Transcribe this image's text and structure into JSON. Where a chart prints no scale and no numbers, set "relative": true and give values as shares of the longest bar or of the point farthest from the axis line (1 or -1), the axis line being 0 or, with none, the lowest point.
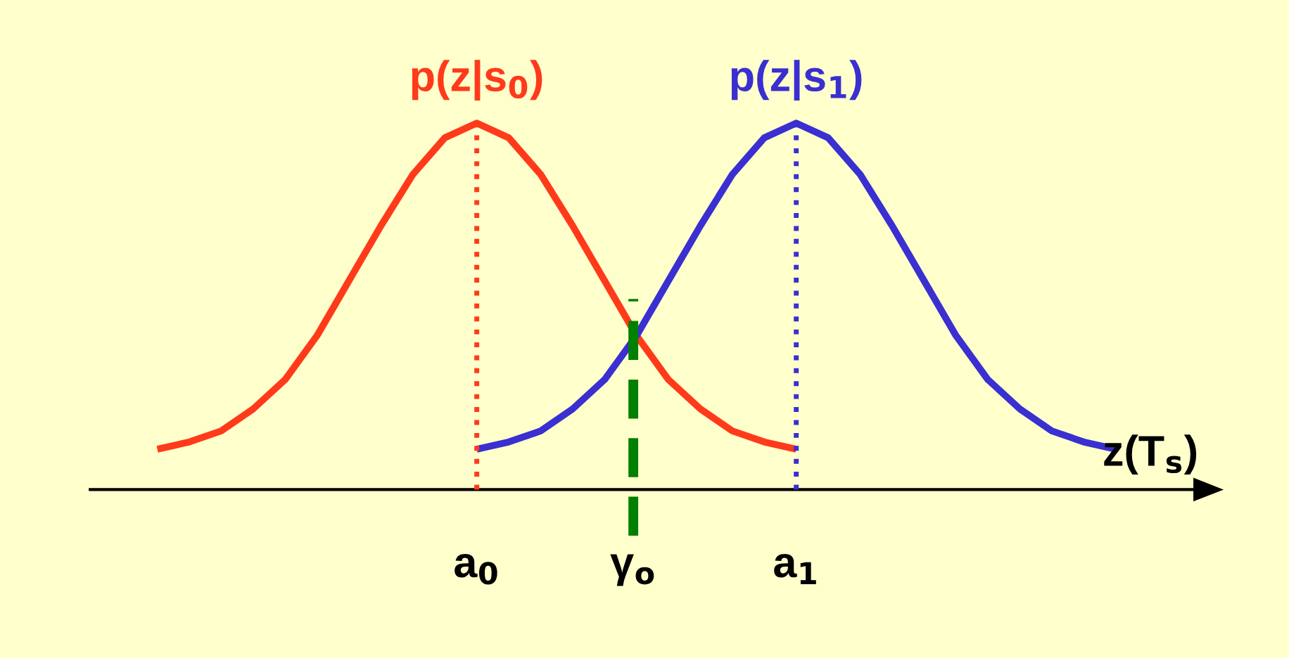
{
  "chart_data": {
    "type": "line",
    "relative": true,
    "xlabel": "z(T$_{s}$)",
    "xlim": [
      -1.21,
      2.26
    ],
    "xticks": [
      {
        "value": 0,
        "label": "a$_{0}$"
      },
      {
        "value": 1,
        "label": "a$_{1}$"
      }
    ],
    "tick_labels": "x",
    "grid": false,
    "legend": false,
    "marker": "none",
    "line_style": "solid",
    "series": [
      {
        "name": "p(z|s$_{0}$)",
        "color": "#ff3a1a",
        "x": [
          -1.0,
          -0.9,
          -0.8,
          -0.7,
          -0.6,
          -0.5,
          -0.4,
          -0.3,
          -0.2,
          -0.1,
          0.0,
          0.1,
          0.2,
          0.3,
          0.4,
          0.5,
          0.6,
          0.7,
          0.8,
          0.9,
          1.0
        ],
        "values": [
          0.11,
          0.13,
          0.16,
          0.22,
          0.3,
          0.42,
          0.57,
          0.72,
          0.86,
          0.96,
          1.0,
          0.96,
          0.86,
          0.72,
          0.57,
          0.42,
          0.3,
          0.22,
          0.16,
          0.13,
          0.11
        ]
      },
      {
        "name": "p(z|s$_{1}$)",
        "color": "#3a2fd0",
        "x": [
          0.0,
          0.1,
          0.2,
          0.3,
          0.4,
          0.5,
          0.6,
          0.7,
          0.8,
          0.9,
          1.0,
          1.1,
          1.2,
          1.3,
          1.4,
          1.5,
          1.6,
          1.7,
          1.8,
          1.9,
          2.0
        ],
        "values": [
          0.11,
          0.13,
          0.16,
          0.22,
          0.3,
          0.42,
          0.57,
          0.72,
          0.86,
          0.96,
          1.0,
          0.96,
          0.86,
          0.72,
          0.57,
          0.42,
          0.3,
          0.22,
          0.16,
          0.13,
          0.11
        ]
      }
    ],
    "ref_lines": [
      {
        "axis": "x",
        "value": 0,
        "color": "#ff3a1a",
        "line_style": "dotted"
      },
      {
        "axis": "x",
        "value": 1,
        "color": "#3a2fd0",
        "line_style": "dotted"
      },
      {
        "axis": "x",
        "value": 0.49,
        "label": "γ$_{o}$",
        "color": "#008000",
        "line_style": "dashed"
      }
    ]
  }
}
